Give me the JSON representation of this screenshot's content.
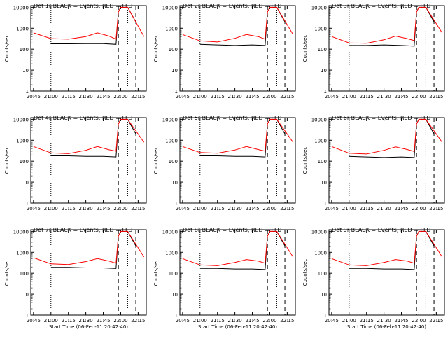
{
  "colors": {
    "events": "#000000",
    "lld": "#ff0000",
    "background": "#ffffff"
  },
  "shared": {
    "x_tick_labels": [
      "20:45",
      "21:00",
      "21:15",
      "21:30",
      "21:45",
      "22:00",
      "22:15"
    ],
    "y_tick_labels": [
      "1",
      "10",
      "100",
      "1000",
      "10000"
    ],
    "ylabel": "Counts/sec",
    "xlabel": "Start Time (06-Feb-11 20:42:40)",
    "xlim": [
      "20:42:40",
      "22:22"
    ],
    "ylim": [
      1,
      12000
    ],
    "y_scale": "log",
    "vertical_markers": [
      {
        "t": "21:00",
        "style": "dotted"
      },
      {
        "t": "21:58",
        "style": "dashed"
      },
      {
        "t": "22:06",
        "style": "dotted"
      },
      {
        "t": "22:13",
        "style": "dashed"
      }
    ]
  },
  "chart_data": [
    {
      "type": "line",
      "title": "Det 1r BLACK = Events, RED = LLD",
      "xlabel": "",
      "series": [
        {
          "color": "#000000",
          "x": [
            "21:00",
            "21:15",
            "21:30",
            "21:45",
            "21:56",
            "21:58",
            "22:00",
            "22:06",
            "22:13"
          ],
          "values": [
            180,
            180,
            185,
            185,
            170,
            6000,
            10000,
            10000,
            2000
          ]
        },
        {
          "color": "#ff0000",
          "x": [
            "20:45",
            "21:00",
            "21:15",
            "21:30",
            "21:40",
            "21:50",
            "21:56",
            "21:58",
            "22:00",
            "22:06",
            "22:20"
          ],
          "values": [
            600,
            320,
            300,
            400,
            600,
            420,
            300,
            6000,
            10000,
            10000,
            400
          ]
        }
      ]
    },
    {
      "type": "line",
      "title": "Det 2r BLACK = Events, RED = LLD",
      "xlabel": "",
      "series": [
        {
          "color": "#000000",
          "x": [
            "21:00",
            "21:15",
            "21:30",
            "21:45",
            "21:56",
            "21:58",
            "22:00",
            "22:06",
            "22:13"
          ],
          "values": [
            170,
            160,
            150,
            160,
            150,
            6000,
            10000,
            10000,
            2000
          ]
        },
        {
          "color": "#ff0000",
          "x": [
            "20:45",
            "21:00",
            "21:15",
            "21:30",
            "21:40",
            "21:50",
            "21:56",
            "21:58",
            "22:00",
            "22:06",
            "22:20"
          ],
          "values": [
            500,
            250,
            220,
            330,
            500,
            400,
            300,
            6000,
            10000,
            10000,
            500
          ]
        }
      ]
    },
    {
      "type": "line",
      "title": "Det 3r BLACK = Events, RED = LLD",
      "xlabel": "",
      "series": [
        {
          "color": "#000000",
          "x": [
            "21:00",
            "21:15",
            "21:30",
            "21:45",
            "21:56",
            "21:58",
            "22:00",
            "22:06",
            "22:13"
          ],
          "values": [
            150,
            150,
            160,
            150,
            140,
            6000,
            10000,
            10000,
            2000
          ]
        },
        {
          "color": "#ff0000",
          "x": [
            "20:45",
            "21:00",
            "21:15",
            "21:30",
            "21:40",
            "21:50",
            "21:56",
            "21:58",
            "22:00",
            "22:06",
            "22:20"
          ],
          "values": [
            400,
            200,
            190,
            280,
            420,
            320,
            260,
            6000,
            10000,
            10000,
            600
          ]
        }
      ]
    },
    {
      "type": "line",
      "title": "Det 4r BLACK = Events, RED = LLD",
      "xlabel": "",
      "series": [
        {
          "color": "#000000",
          "x": [
            "21:00",
            "21:15",
            "21:30",
            "21:45",
            "21:56",
            "21:58",
            "22:00",
            "22:06",
            "22:13"
          ],
          "values": [
            180,
            180,
            170,
            170,
            160,
            6000,
            10000,
            10000,
            2000
          ]
        },
        {
          "color": "#ff0000",
          "x": [
            "20:45",
            "21:00",
            "21:15",
            "21:30",
            "21:40",
            "21:50",
            "21:56",
            "21:58",
            "22:00",
            "22:06",
            "22:20"
          ],
          "values": [
            500,
            250,
            230,
            330,
            500,
            350,
            300,
            6000,
            10000,
            10000,
            800
          ]
        }
      ]
    },
    {
      "type": "line",
      "title": "Det 5r BLACK = Events, RED = LLD",
      "xlabel": "",
      "series": [
        {
          "color": "#000000",
          "x": [
            "21:00",
            "21:15",
            "21:30",
            "21:45",
            "21:56",
            "21:58",
            "22:00",
            "22:06",
            "22:13"
          ],
          "values": [
            180,
            180,
            170,
            170,
            160,
            6000,
            10000,
            10000,
            2000
          ]
        },
        {
          "color": "#ff0000",
          "x": [
            "20:45",
            "21:00",
            "21:15",
            "21:30",
            "21:40",
            "21:50",
            "21:56",
            "21:58",
            "22:00",
            "22:06",
            "22:20"
          ],
          "values": [
            500,
            260,
            240,
            340,
            500,
            360,
            300,
            6000,
            10000,
            10000,
            800
          ]
        }
      ]
    },
    {
      "type": "line",
      "title": "Det 6r BLACK = Events, RED = LLD",
      "xlabel": "",
      "series": [
        {
          "color": "#000000",
          "x": [
            "21:00",
            "21:15",
            "21:30",
            "21:45",
            "21:56",
            "21:58",
            "22:00",
            "22:06",
            "22:13"
          ],
          "values": [
            170,
            160,
            150,
            160,
            150,
            6000,
            10000,
            10000,
            2000
          ]
        },
        {
          "color": "#ff0000",
          "x": [
            "20:45",
            "21:00",
            "21:15",
            "21:30",
            "21:40",
            "21:50",
            "21:56",
            "21:58",
            "22:00",
            "22:06",
            "22:20"
          ],
          "values": [
            500,
            240,
            220,
            330,
            480,
            360,
            290,
            6000,
            10000,
            10000,
            800
          ]
        }
      ]
    },
    {
      "type": "line",
      "title": "Det 7r BLACK = Events, RED = LLD",
      "xlabel": "Start Time (06-Feb-11 20:42:40)",
      "series": [
        {
          "color": "#000000",
          "x": [
            "21:00",
            "21:15",
            "21:30",
            "21:45",
            "21:56",
            "21:58",
            "22:00",
            "22:06",
            "22:13"
          ],
          "values": [
            190,
            190,
            180,
            180,
            170,
            6000,
            10000,
            10000,
            2000
          ]
        },
        {
          "color": "#ff0000",
          "x": [
            "20:45",
            "21:00",
            "21:15",
            "21:30",
            "21:40",
            "21:50",
            "21:56",
            "21:58",
            "22:00",
            "22:06",
            "22:20"
          ],
          "values": [
            550,
            280,
            260,
            360,
            500,
            380,
            300,
            6000,
            10000,
            10000,
            600
          ]
        }
      ]
    },
    {
      "type": "line",
      "title": "Det 8r BLACK = Events, RED = LLD",
      "xlabel": "Start Time (06-Feb-11 20:42:40)",
      "series": [
        {
          "color": "#000000",
          "x": [
            "21:00",
            "21:15",
            "21:30",
            "21:45",
            "21:56",
            "21:58",
            "22:00",
            "22:06",
            "22:13"
          ],
          "values": [
            170,
            170,
            160,
            160,
            150,
            6000,
            10000,
            10000,
            2000
          ]
        },
        {
          "color": "#ff0000",
          "x": [
            "20:45",
            "21:00",
            "21:15",
            "21:30",
            "21:40",
            "21:50",
            "21:56",
            "21:58",
            "22:00",
            "22:06",
            "22:20"
          ],
          "values": [
            500,
            250,
            230,
            330,
            450,
            380,
            300,
            6000,
            10000,
            10000,
            600
          ]
        }
      ]
    },
    {
      "type": "line",
      "title": "Det 9r BLACK = Events, RED = LLD",
      "xlabel": "Start Time (06-Feb-11 20:42:40)",
      "series": [
        {
          "color": "#000000",
          "x": [
            "21:00",
            "21:15",
            "21:30",
            "21:45",
            "21:56",
            "21:58",
            "22:00",
            "22:06",
            "22:13"
          ],
          "values": [
            170,
            170,
            160,
            160,
            150,
            6000,
            10000,
            10000,
            2000
          ]
        },
        {
          "color": "#ff0000",
          "x": [
            "20:45",
            "21:00",
            "21:15",
            "21:30",
            "21:40",
            "21:50",
            "21:56",
            "21:58",
            "22:00",
            "22:06",
            "22:20"
          ],
          "values": [
            500,
            250,
            230,
            330,
            450,
            380,
            300,
            6000,
            10000,
            10000,
            600
          ]
        }
      ]
    }
  ]
}
